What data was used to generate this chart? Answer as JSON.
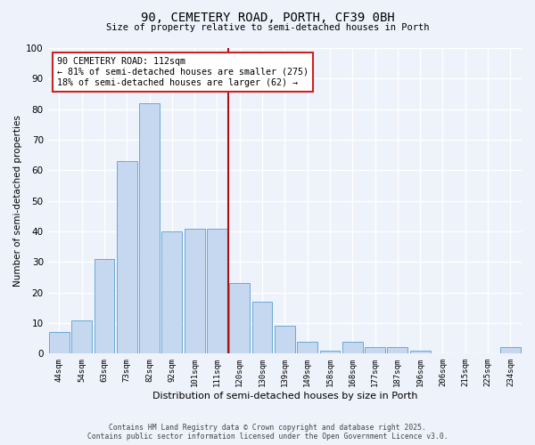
{
  "title": "90, CEMETERY ROAD, PORTH, CF39 0BH",
  "subtitle": "Size of property relative to semi-detached houses in Porth",
  "xlabel": "Distribution of semi-detached houses by size in Porth",
  "ylabel": "Number of semi-detached properties",
  "bar_labels": [
    "44sqm",
    "54sqm",
    "63sqm",
    "73sqm",
    "82sqm",
    "92sqm",
    "101sqm",
    "111sqm",
    "120sqm",
    "130sqm",
    "139sqm",
    "149sqm",
    "158sqm",
    "168sqm",
    "177sqm",
    "187sqm",
    "196sqm",
    "206sqm",
    "215sqm",
    "225sqm",
    "234sqm"
  ],
  "bar_values": [
    7,
    11,
    31,
    63,
    82,
    40,
    41,
    41,
    23,
    17,
    9,
    4,
    1,
    4,
    2,
    2,
    1,
    0,
    0,
    0,
    2
  ],
  "bar_color": "#c5d8f0",
  "bar_edge_color": "#6aaad4",
  "background_color": "#eef2fb",
  "grid_color": "#ffffff",
  "vline_x": 7.5,
  "vline_color": "#aa1111",
  "annotation_title": "90 CEMETERY ROAD: 112sqm",
  "annotation_line1": "← 81% of semi-detached houses are smaller (275)",
  "annotation_line2": "18% of semi-detached houses are larger (62) →",
  "annotation_box_color": "#cc2222",
  "ylim": [
    0,
    100
  ],
  "yticks": [
    0,
    10,
    20,
    30,
    40,
    50,
    60,
    70,
    80,
    90,
    100
  ],
  "footnote1": "Contains HM Land Registry data © Crown copyright and database right 2025.",
  "footnote2": "Contains public sector information licensed under the Open Government Licence v3.0."
}
